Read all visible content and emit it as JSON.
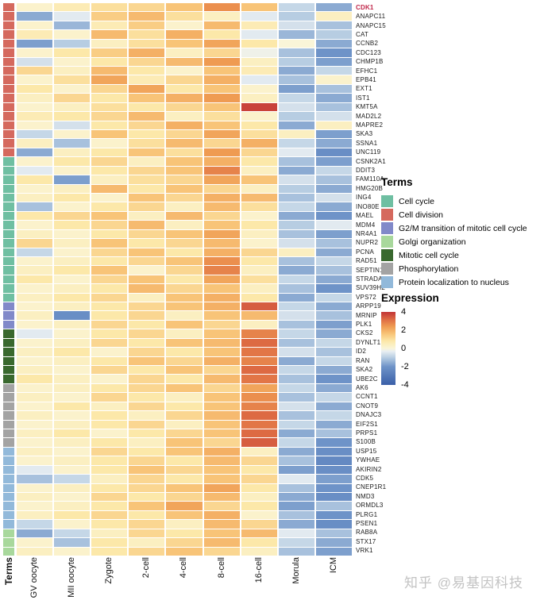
{
  "watermark": "知乎 @易基因科技",
  "terms_axis_label": "Terms",
  "highlight_gene_color": "#c0274a",
  "colormap": [
    {
      "v": -4,
      "c": "#3a5fa8"
    },
    {
      "v": -2,
      "c": "#6e93c8"
    },
    {
      "v": -1,
      "c": "#b7cde2"
    },
    {
      "v": -0.3,
      "c": "#e9eff2"
    },
    {
      "v": 0,
      "c": "#faf5d8"
    },
    {
      "v": 0.8,
      "c": "#fce8a9"
    },
    {
      "v": 1.6,
      "c": "#f8c478"
    },
    {
      "v": 2.4,
      "c": "#ef9b52"
    },
    {
      "v": 3.2,
      "c": "#dd6a43"
    },
    {
      "v": 4,
      "c": "#c23437"
    }
  ],
  "legend_terms": {
    "title": "Terms",
    "items": [
      {
        "key": "cell_cycle",
        "label": "Cell cycle",
        "color": "#6fbfa2"
      },
      {
        "key": "cell_division",
        "label": "Cell division",
        "color": "#d5695e"
      },
      {
        "key": "g2m",
        "label": "G2/M transition of mitotic cell cycle",
        "color": "#8189c9"
      },
      {
        "key": "golgi",
        "label": "Golgi organization",
        "color": "#a8d89c"
      },
      {
        "key": "mitotic",
        "label": "Mitotic cell cycle",
        "color": "#39682e"
      },
      {
        "key": "phospho",
        "label": "Phosphorylation",
        "color": "#a3a3a3"
      },
      {
        "key": "protein_loc",
        "label": "Protein localization to nucleus",
        "color": "#92b9da"
      }
    ]
  },
  "legend_expression": {
    "title": "Expression",
    "ticks": [
      4,
      2,
      0,
      -2,
      -4
    ],
    "max": 4,
    "min": -4
  },
  "chart_data": {
    "type": "heatmap",
    "title": "",
    "xlabel": "",
    "ylabel": "",
    "value_range": [
      -4,
      4
    ],
    "columns": [
      "GV oocyte",
      "MII oocyte",
      "Zygote",
      "2-cell",
      "4-cell",
      "8-cell",
      "16-cell",
      "Morula",
      "ICM"
    ],
    "rows": [
      {
        "gene": "CDK1",
        "term": "cell_division",
        "highlight": true,
        "values": [
          0.2,
          0.6,
          1.0,
          1.2,
          1.6,
          2.6,
          1.6,
          -0.8,
          -1.6
        ]
      },
      {
        "gene": "ANAPC11",
        "term": "cell_division",
        "highlight": false,
        "values": [
          -1.6,
          -0.4,
          1.4,
          1.8,
          1.0,
          0.4,
          -0.4,
          -1.0,
          0.4
        ]
      },
      {
        "gene": "ANAPC15",
        "term": "cell_division",
        "highlight": false,
        "values": [
          0.2,
          -1.4,
          0.6,
          1.4,
          0.2,
          1.8,
          0.6,
          -0.6,
          -1.2
        ]
      },
      {
        "gene": "CAT",
        "term": "cell_division",
        "highlight": false,
        "values": [
          0.6,
          0.2,
          1.8,
          1.0,
          2.0,
          0.8,
          -0.4,
          -1.4,
          -1.0
        ]
      },
      {
        "gene": "CCNB2",
        "term": "cell_division",
        "highlight": false,
        "values": [
          -1.8,
          -1.0,
          0.4,
          1.0,
          1.6,
          2.2,
          0.8,
          0.0,
          -1.6
        ]
      },
      {
        "gene": "CDC123",
        "term": "cell_division",
        "highlight": false,
        "values": [
          0.2,
          0.8,
          1.4,
          2.0,
          0.4,
          1.2,
          -0.2,
          -1.2,
          -2.0
        ]
      },
      {
        "gene": "CHMP1B",
        "term": "cell_division",
        "highlight": false,
        "values": [
          -0.6,
          0.2,
          0.8,
          1.2,
          1.8,
          2.4,
          0.4,
          -1.0,
          -1.8
        ]
      },
      {
        "gene": "EFHC1",
        "term": "cell_division",
        "highlight": false,
        "values": [
          1.2,
          0.4,
          1.8,
          0.8,
          0.2,
          1.6,
          0.6,
          -1.6,
          -0.8
        ]
      },
      {
        "gene": "EPB41",
        "term": "cell_division",
        "highlight": false,
        "values": [
          0.2,
          1.0,
          2.2,
          0.6,
          1.2,
          2.0,
          -0.4,
          -1.2,
          0.2
        ]
      },
      {
        "gene": "EXT1",
        "term": "cell_division",
        "highlight": false,
        "values": [
          0.8,
          0.2,
          1.2,
          2.2,
          0.8,
          1.6,
          0.2,
          -1.8,
          -1.2
        ]
      },
      {
        "gene": "IST1",
        "term": "cell_division",
        "highlight": false,
        "values": [
          0.4,
          1.2,
          0.8,
          1.6,
          2.0,
          2.4,
          0.4,
          -0.8,
          -1.6
        ]
      },
      {
        "gene": "KMT5A",
        "term": "cell_division",
        "highlight": false,
        "values": [
          0.2,
          0.4,
          1.0,
          0.8,
          1.2,
          1.6,
          3.8,
          -0.6,
          -1.2
        ]
      },
      {
        "gene": "MAD2L2",
        "term": "cell_division",
        "highlight": false,
        "values": [
          0.6,
          0.8,
          1.2,
          1.8,
          0.4,
          1.0,
          0.2,
          -1.0,
          -0.6
        ]
      },
      {
        "gene": "MAPRE2",
        "term": "cell_division",
        "highlight": false,
        "values": [
          0.2,
          -0.6,
          0.8,
          1.2,
          2.0,
          1.6,
          0.8,
          -1.6,
          0.4
        ]
      },
      {
        "gene": "SKA3",
        "term": "cell_division",
        "highlight": false,
        "values": [
          -0.8,
          0.2,
          1.6,
          0.8,
          1.2,
          2.2,
          1.0,
          0.4,
          -1.8
        ]
      },
      {
        "gene": "SSNA1",
        "term": "cell_division",
        "highlight": false,
        "values": [
          0.4,
          -1.2,
          0.2,
          1.0,
          1.8,
          1.2,
          2.0,
          -0.8,
          -1.6
        ]
      },
      {
        "gene": "UNC119",
        "term": "cell_division",
        "highlight": false,
        "values": [
          -1.6,
          0.4,
          0.8,
          1.6,
          1.0,
          2.4,
          1.2,
          -0.4,
          -2.2
        ]
      },
      {
        "gene": "CSNK2A1",
        "term": "cell_cycle",
        "highlight": false,
        "values": [
          0.2,
          0.8,
          1.2,
          0.4,
          1.6,
          2.0,
          0.8,
          -1.2,
          -1.8
        ]
      },
      {
        "gene": "DDIT3",
        "term": "cell_cycle",
        "highlight": false,
        "values": [
          -0.4,
          0.2,
          0.8,
          1.2,
          1.6,
          2.8,
          0.4,
          -1.6,
          -0.8
        ]
      },
      {
        "gene": "FAM110A",
        "term": "cell_cycle",
        "highlight": false,
        "values": [
          0.8,
          -1.8,
          0.4,
          1.0,
          1.2,
          2.2,
          1.6,
          -0.6,
          -1.2
        ]
      },
      {
        "gene": "HMG20B",
        "term": "cell_cycle",
        "highlight": false,
        "values": [
          0.2,
          0.4,
          1.8,
          0.8,
          1.6,
          1.2,
          0.4,
          -1.0,
          -1.6
        ]
      },
      {
        "gene": "ING4",
        "term": "cell_cycle",
        "highlight": false,
        "values": [
          0.4,
          0.8,
          0.2,
          1.6,
          1.2,
          2.0,
          1.8,
          -1.2,
          -0.6
        ]
      },
      {
        "gene": "INO80E",
        "term": "cell_cycle",
        "highlight": false,
        "values": [
          -1.2,
          0.2,
          0.8,
          1.2,
          0.4,
          1.8,
          1.0,
          -0.8,
          -1.6
        ]
      },
      {
        "gene": "MAEL",
        "term": "cell_cycle",
        "highlight": false,
        "values": [
          0.8,
          1.2,
          1.6,
          0.4,
          1.8,
          1.2,
          0.2,
          -1.6,
          -2.0
        ]
      },
      {
        "gene": "MDM4",
        "term": "cell_cycle",
        "highlight": false,
        "values": [
          0.2,
          0.8,
          1.2,
          1.8,
          0.4,
          1.6,
          0.8,
          -1.0,
          -0.4
        ]
      },
      {
        "gene": "NR4A1",
        "term": "cell_cycle",
        "highlight": false,
        "values": [
          0.4,
          0.2,
          0.8,
          1.2,
          1.6,
          2.2,
          0.4,
          -1.2,
          -1.8
        ]
      },
      {
        "gene": "NUPR2",
        "term": "cell_cycle",
        "highlight": false,
        "values": [
          1.2,
          0.4,
          1.6,
          0.8,
          1.2,
          1.8,
          0.2,
          -0.6,
          -1.2
        ]
      },
      {
        "gene": "PCNA",
        "term": "cell_cycle",
        "highlight": false,
        "values": [
          -0.8,
          0.2,
          1.2,
          1.6,
          0.8,
          2.0,
          1.2,
          0.4,
          -1.6
        ]
      },
      {
        "gene": "RAD51",
        "term": "cell_cycle",
        "highlight": false,
        "values": [
          0.2,
          0.4,
          0.8,
          1.2,
          1.6,
          2.6,
          0.8,
          -1.2,
          -0.8
        ]
      },
      {
        "gene": "SEPTIN1",
        "term": "cell_cycle",
        "highlight": false,
        "values": [
          0.4,
          0.8,
          1.6,
          0.2,
          1.2,
          2.8,
          0.4,
          -1.6,
          -1.2
        ]
      },
      {
        "gene": "STRADA",
        "term": "cell_cycle",
        "highlight": false,
        "values": [
          0.8,
          0.2,
          1.2,
          1.6,
          0.8,
          2.2,
          1.0,
          -0.8,
          -1.6
        ]
      },
      {
        "gene": "SUV39H2",
        "term": "cell_cycle",
        "highlight": false,
        "values": [
          0.2,
          0.4,
          0.8,
          1.8,
          1.2,
          1.6,
          0.4,
          -1.2,
          -2.0
        ]
      },
      {
        "gene": "VPS72",
        "term": "cell_cycle",
        "highlight": false,
        "values": [
          0.4,
          0.8,
          1.2,
          0.4,
          1.6,
          2.0,
          0.8,
          -1.6,
          -0.8
        ]
      },
      {
        "gene": "ARPP19",
        "term": "g2m",
        "highlight": false,
        "values": [
          0.2,
          0.4,
          0.8,
          1.2,
          1.6,
          2.0,
          3.4,
          -0.8,
          -1.6
        ]
      },
      {
        "gene": "MRNIP",
        "term": "g2m",
        "highlight": false,
        "values": [
          0.4,
          -2.2,
          0.8,
          1.2,
          0.4,
          1.6,
          1.8,
          -0.6,
          -1.2
        ]
      },
      {
        "gene": "PLK1",
        "term": "g2m",
        "highlight": false,
        "values": [
          0.2,
          0.4,
          1.2,
          0.8,
          1.6,
          1.2,
          0.4,
          -1.2,
          -1.8
        ]
      },
      {
        "gene": "CKS2",
        "term": "mitotic",
        "highlight": false,
        "values": [
          -0.4,
          0.2,
          0.8,
          1.2,
          0.4,
          1.6,
          2.8,
          -0.8,
          -1.6
        ]
      },
      {
        "gene": "DYNLT1",
        "term": "mitotic",
        "highlight": false,
        "values": [
          0.2,
          0.4,
          1.2,
          0.8,
          1.6,
          1.8,
          3.2,
          -1.2,
          -0.8
        ]
      },
      {
        "gene": "ID2",
        "term": "mitotic",
        "highlight": false,
        "values": [
          0.4,
          0.8,
          0.2,
          1.2,
          0.8,
          1.6,
          3.0,
          -0.6,
          -1.2
        ]
      },
      {
        "gene": "RAN",
        "term": "mitotic",
        "highlight": false,
        "values": [
          0.2,
          0.4,
          0.8,
          1.6,
          1.2,
          2.0,
          2.8,
          -1.6,
          -0.8
        ]
      },
      {
        "gene": "SKA2",
        "term": "mitotic",
        "highlight": false,
        "values": [
          0.4,
          0.2,
          1.2,
          0.8,
          1.6,
          1.2,
          3.2,
          -0.8,
          -1.6
        ]
      },
      {
        "gene": "UBE2C",
        "term": "mitotic",
        "highlight": false,
        "values": [
          0.8,
          0.4,
          0.2,
          1.2,
          0.8,
          1.8,
          3.0,
          -1.2,
          -2.0
        ]
      },
      {
        "gene": "AK6",
        "term": "phospho",
        "highlight": false,
        "values": [
          0.2,
          0.4,
          0.8,
          1.2,
          1.6,
          1.2,
          2.2,
          -0.8,
          -1.6
        ]
      },
      {
        "gene": "CCNT1",
        "term": "phospho",
        "highlight": false,
        "values": [
          0.4,
          0.2,
          1.2,
          0.8,
          0.4,
          1.6,
          2.6,
          -1.2,
          -0.8
        ]
      },
      {
        "gene": "CNOT9",
        "term": "phospho",
        "highlight": false,
        "values": [
          0.2,
          0.8,
          0.4,
          1.2,
          0.8,
          1.6,
          2.8,
          -0.6,
          -1.6
        ]
      },
      {
        "gene": "DNAJC3",
        "term": "phospho",
        "highlight": false,
        "values": [
          0.4,
          0.2,
          0.8,
          0.4,
          1.2,
          1.8,
          3.2,
          -1.2,
          -0.8
        ]
      },
      {
        "gene": "EIF2S1",
        "term": "phospho",
        "highlight": false,
        "values": [
          0.2,
          0.4,
          0.8,
          1.2,
          0.4,
          1.6,
          3.0,
          -0.8,
          -1.6
        ]
      },
      {
        "gene": "PRPS1",
        "term": "phospho",
        "highlight": false,
        "values": [
          0.4,
          0.8,
          0.2,
          0.8,
          1.2,
          1.6,
          3.2,
          -1.6,
          -1.2
        ]
      },
      {
        "gene": "S100B",
        "term": "phospho",
        "highlight": false,
        "values": [
          0.2,
          0.4,
          0.8,
          0.4,
          1.6,
          1.2,
          3.4,
          -0.8,
          -2.0
        ]
      },
      {
        "gene": "USP15",
        "term": "protein_loc",
        "highlight": false,
        "values": [
          0.4,
          0.2,
          1.2,
          0.8,
          1.6,
          2.0,
          0.4,
          -1.6,
          -2.2
        ]
      },
      {
        "gene": "YWHAE",
        "term": "protein_loc",
        "highlight": false,
        "values": [
          0.2,
          0.4,
          0.8,
          1.2,
          0.8,
          1.8,
          1.2,
          -1.2,
          -2.4
        ]
      },
      {
        "gene": "AKIRIN2",
        "term": "protein_loc",
        "highlight": false,
        "values": [
          -0.4,
          0.2,
          0.8,
          1.6,
          1.2,
          1.6,
          0.8,
          -1.8,
          -2.2
        ]
      },
      {
        "gene": "CDK5",
        "term": "protein_loc",
        "highlight": false,
        "values": [
          -1.2,
          -0.8,
          0.4,
          1.2,
          0.8,
          1.6,
          1.2,
          -0.4,
          -1.8
        ]
      },
      {
        "gene": "CNEP1R1",
        "term": "protein_loc",
        "highlight": false,
        "values": [
          0.2,
          0.4,
          0.8,
          1.2,
          1.6,
          2.2,
          0.8,
          -1.2,
          -2.0
        ]
      },
      {
        "gene": "NMD3",
        "term": "protein_loc",
        "highlight": false,
        "values": [
          0.4,
          0.2,
          1.2,
          0.8,
          1.2,
          1.8,
          0.4,
          -1.6,
          -2.2
        ]
      },
      {
        "gene": "ORMDL3",
        "term": "protein_loc",
        "highlight": false,
        "values": [
          0.2,
          0.4,
          0.8,
          1.6,
          2.2,
          1.2,
          0.8,
          -1.8,
          -1.2
        ]
      },
      {
        "gene": "PLRG1",
        "term": "protein_loc",
        "highlight": false,
        "values": [
          0.4,
          0.8,
          1.2,
          0.8,
          1.6,
          2.0,
          0.2,
          -1.2,
          -2.0
        ]
      },
      {
        "gene": "PSEN1",
        "term": "protein_loc",
        "highlight": false,
        "values": [
          -0.8,
          0.2,
          0.8,
          1.2,
          0.4,
          1.8,
          1.2,
          -1.6,
          -2.2
        ]
      },
      {
        "gene": "RAB8A",
        "term": "golgi",
        "highlight": false,
        "values": [
          -1.6,
          -0.8,
          0.4,
          1.2,
          0.8,
          1.6,
          1.8,
          -0.4,
          -1.2
        ]
      },
      {
        "gene": "STX17",
        "term": "golgi",
        "highlight": false,
        "values": [
          0.2,
          -1.2,
          0.8,
          0.4,
          1.2,
          1.8,
          0.8,
          -0.8,
          -1.6
        ]
      },
      {
        "gene": "VRK1",
        "term": "golgi",
        "highlight": false,
        "values": [
          0.4,
          0.2,
          0.8,
          1.2,
          1.6,
          1.2,
          0.4,
          -1.2,
          -1.8
        ]
      }
    ]
  }
}
